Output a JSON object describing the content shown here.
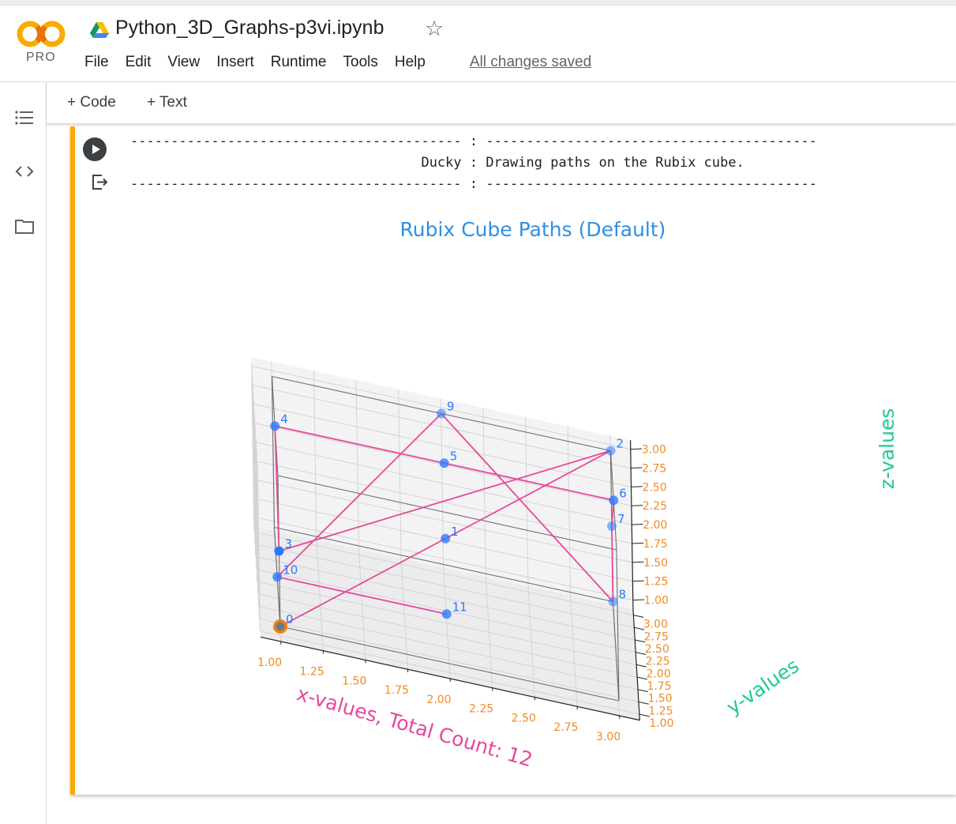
{
  "app": {
    "logo_text": "CO",
    "logo_badge": "PRO"
  },
  "header": {
    "file_name": "Python_3D_Graphs-p3vi.ipynb",
    "menu": [
      "File",
      "Edit",
      "View",
      "Insert",
      "Runtime",
      "Tools",
      "Help"
    ],
    "save_status": "All changes saved"
  },
  "toolbar": {
    "add_code": "+ Code",
    "add_text": "+ Text"
  },
  "sidebar": {
    "items": [
      "table-of-contents-icon",
      "code-snippets-icon",
      "files-icon"
    ]
  },
  "output": {
    "lines": [
      "----------------------------------------- : -----------------------------------------",
      "                                    Ducky : Drawing paths on the Rubix cube.",
      "----------------------------------------- : -----------------------------------------"
    ]
  },
  "colors": {
    "accent": "#f9ab00",
    "path": "#e8479a",
    "point": "#2979ff",
    "start": "#f57c00",
    "tick": "#f08a24",
    "axis_label_x": "#e8479a",
    "axis_label_yz": "#20c997",
    "title": "#2f8fe6"
  },
  "chart_data": {
    "type": "scatter3d",
    "title": "Rubix Cube Paths (Default)",
    "xlabel": "x-values, Total Count: 12",
    "ylabel": "y-values",
    "zlabel": "z-values",
    "xlim": [
      1,
      3
    ],
    "ylim": [
      1,
      3
    ],
    "zlim": [
      1,
      3
    ],
    "x_ticks": [
      "1.00",
      "1.25",
      "1.50",
      "1.75",
      "2.00",
      "2.25",
      "2.50",
      "2.75",
      "3.00"
    ],
    "y_ticks": [
      "1.00",
      "1.25",
      "1.50",
      "1.75",
      "2.00",
      "2.25",
      "2.50",
      "2.75",
      "3.00"
    ],
    "z_ticks": [
      "1.00",
      "1.25",
      "1.50",
      "1.75",
      "2.00",
      "2.25",
      "2.50",
      "2.75",
      "3.00"
    ],
    "grid": true,
    "points": [
      {
        "label": "0",
        "x": 1,
        "y": 1,
        "z": 1
      },
      {
        "label": "1",
        "x": 2,
        "y": 2,
        "z": 2
      },
      {
        "label": "2",
        "x": 3,
        "y": 3,
        "z": 3
      },
      {
        "label": "3",
        "x": 1,
        "y": 1,
        "z": 2
      },
      {
        "label": "4",
        "x": 1,
        "y": 2,
        "z": 3
      },
      {
        "label": "5",
        "x": 2,
        "y": 2,
        "z": 3
      },
      {
        "label": "6",
        "x": 3,
        "y": 2,
        "z": 3
      },
      {
        "label": "7",
        "x": 3,
        "y": 3,
        "z": 2
      },
      {
        "label": "8",
        "x": 3,
        "y": 3,
        "z": 1
      },
      {
        "label": "9",
        "x": 2,
        "y": 3,
        "z": 3
      },
      {
        "label": "10",
        "x": 1,
        "y": 2,
        "z": 1
      },
      {
        "label": "11",
        "x": 2,
        "y": 2,
        "z": 1
      }
    ]
  }
}
